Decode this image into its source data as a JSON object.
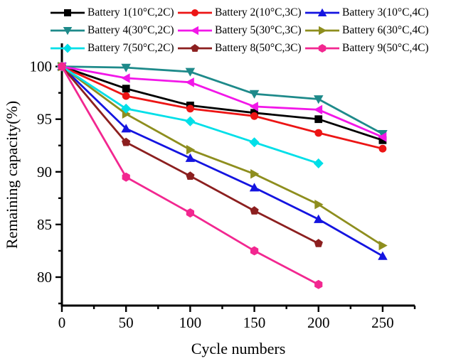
{
  "chart_data": {
    "type": "line",
    "title": "",
    "xlabel": "Cycle numbers",
    "ylabel": "Remaining capacity(%)",
    "xlim": [
      0,
      275
    ],
    "ylim": [
      77.3,
      102.2
    ],
    "x_major_ticks": [
      0,
      50,
      100,
      150,
      200,
      250
    ],
    "x_minor_ticks": [
      25,
      75,
      125,
      175,
      225,
      275
    ],
    "y_major_ticks": [
      80,
      85,
      90,
      95,
      100
    ],
    "y_minor_ticks": [
      77.5,
      82.5,
      87.5,
      92.5,
      97.5
    ],
    "grid": false,
    "legend_position": "top",
    "legend_columns": 3,
    "series": [
      {
        "name": "Battery 1(10°C,2C)",
        "color": "#000000",
        "marker": "square",
        "x": [
          0,
          50,
          100,
          150,
          200,
          250
        ],
        "values": [
          100,
          97.9,
          96.3,
          95.6,
          95.0,
          93.0
        ]
      },
      {
        "name": "Battery 2(10°C,3C)",
        "color": "#ec1515",
        "marker": "circle",
        "x": [
          0,
          50,
          100,
          150,
          200,
          250
        ],
        "values": [
          100,
          97.2,
          96.0,
          95.3,
          93.7,
          92.2
        ]
      },
      {
        "name": "Battery 3(10°C,4C)",
        "color": "#1414e0",
        "marker": "triangle-up",
        "x": [
          0,
          50,
          100,
          150,
          200,
          250
        ],
        "values": [
          100,
          94.1,
          91.3,
          88.5,
          85.5,
          82.0
        ]
      },
      {
        "name": "Battery 4(30°C,2C)",
        "color": "#1e8a8a",
        "marker": "triangle-down",
        "x": [
          0,
          50,
          100,
          150,
          200,
          250
        ],
        "values": [
          100,
          99.9,
          99.5,
          97.4,
          96.9,
          93.6
        ]
      },
      {
        "name": "Battery 5(30°C,3C)",
        "color": "#f217e8",
        "marker": "triangle-left",
        "x": [
          0,
          50,
          100,
          150,
          200,
          250
        ],
        "values": [
          100,
          98.9,
          98.5,
          96.2,
          95.9,
          93.3
        ]
      },
      {
        "name": "Battery 6(30°C,4C)",
        "color": "#8e8e1e",
        "marker": "triangle-right",
        "x": [
          0,
          50,
          100,
          150,
          200,
          250
        ],
        "values": [
          100,
          95.5,
          92.1,
          89.8,
          86.9,
          83.0
        ]
      },
      {
        "name": "Battery 7(50°C,2C)",
        "color": "#00dfe8",
        "marker": "diamond",
        "x": [
          0,
          50,
          100,
          150,
          200
        ],
        "values": [
          100,
          96.0,
          94.8,
          92.8,
          90.8
        ]
      },
      {
        "name": "Battery 8(50°C,3C)",
        "color": "#8c1f1f",
        "marker": "pentagon",
        "x": [
          0,
          50,
          100,
          150,
          200
        ],
        "values": [
          100,
          92.8,
          89.6,
          86.3,
          83.2
        ]
      },
      {
        "name": "Battery 9(50°C,4C)",
        "color": "#f22790",
        "marker": "hexagon",
        "x": [
          0,
          50,
          100,
          150,
          200
        ],
        "values": [
          100,
          89.5,
          86.1,
          82.5,
          79.3
        ]
      }
    ]
  }
}
